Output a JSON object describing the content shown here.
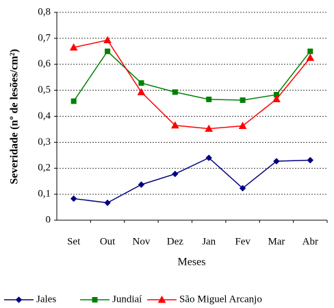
{
  "chart_data": {
    "type": "line",
    "y_label": "Severidade (nº de lesões/cm²)",
    "x_label": "Meses",
    "categories": [
      "Set",
      "Out",
      "Nov",
      "Dez",
      "Jan",
      "Fev",
      "Mar",
      "Abr"
    ],
    "series": [
      {
        "name": "Jales",
        "color": "#000080",
        "marker": "diamond",
        "values": [
          0.083,
          0.067,
          0.137,
          0.178,
          0.24,
          0.123,
          0.227,
          0.231
        ]
      },
      {
        "name": "Jundiaí",
        "color": "#008000",
        "marker": "square",
        "values": [
          0.458,
          0.65,
          0.528,
          0.493,
          0.465,
          0.462,
          0.483,
          0.65
        ]
      },
      {
        "name": "São Miguel Arcanjo",
        "color": "#ff0000",
        "marker": "triangle",
        "values": [
          0.665,
          0.693,
          0.493,
          0.365,
          0.352,
          0.363,
          0.466,
          0.625
        ]
      }
    ],
    "ylim": [
      0,
      0.8
    ],
    "yticks": [
      0,
      {
        "value": 0.1,
        "label": "0,1"
      },
      {
        "value": 0.2,
        "label": "0,2"
      },
      {
        "value": 0.3,
        "label": "0,3"
      },
      {
        "value": 0.4,
        "label": "0,4"
      },
      {
        "value": 0.5,
        "label": "0,5"
      },
      {
        "value": 0.6,
        "label": "0,6"
      },
      {
        "value": 0.7,
        "label": "0,7"
      },
      {
        "value": 0.8,
        "label": "0,8"
      }
    ],
    "grid": true
  }
}
